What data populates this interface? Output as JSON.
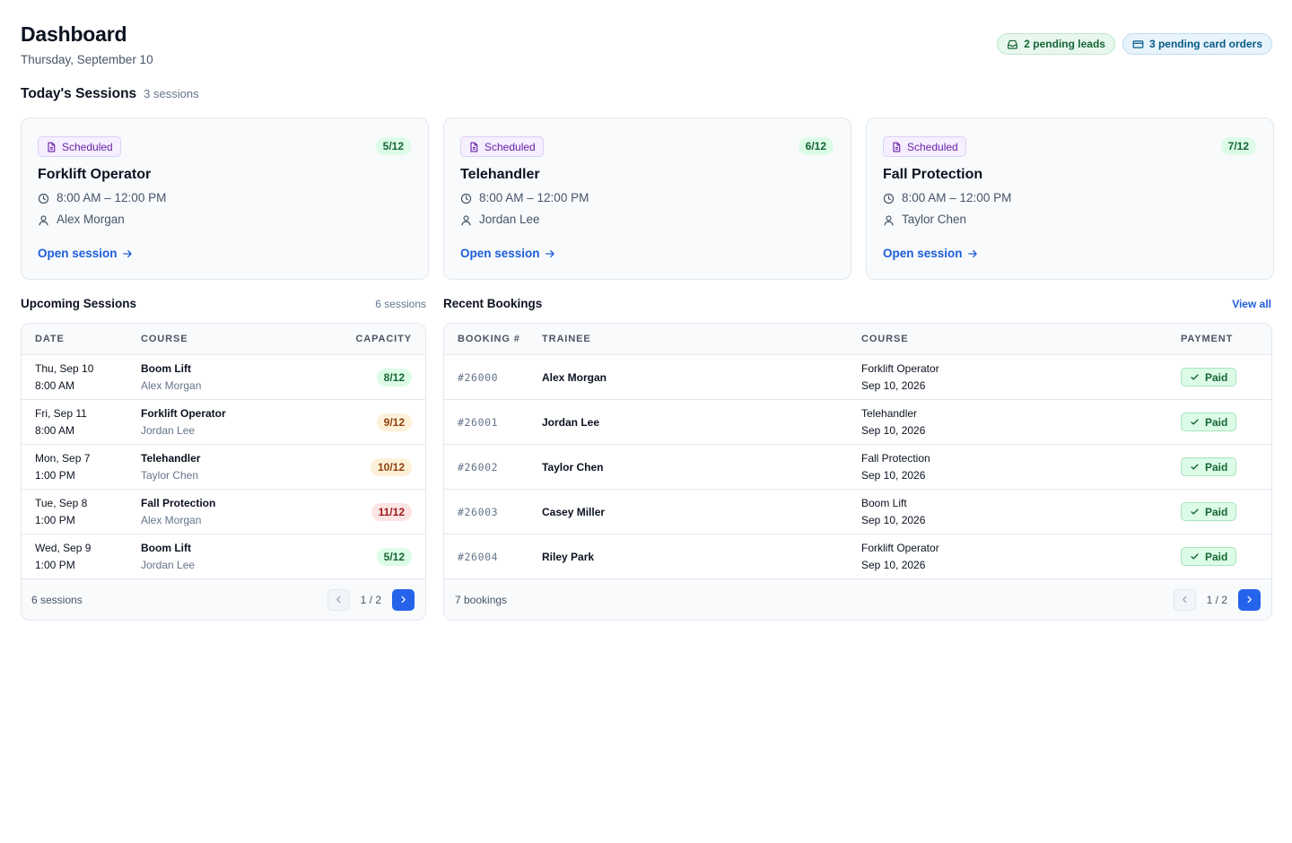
{
  "header": {
    "title": "Dashboard",
    "date": "Thursday, September 10",
    "badges": [
      {
        "label": "2 pending leads",
        "icon": "inbox-icon",
        "color": "#166534"
      },
      {
        "label": "3 pending card orders",
        "icon": "credit-card-icon",
        "color": "#075985"
      }
    ]
  },
  "todays_sessions": {
    "title": "Today's Sessions",
    "count": "3 sessions",
    "cards": [
      {
        "status": "Scheduled",
        "capacity": "5/12",
        "course": "Forklift Operator",
        "time": "8:00 AM – 12:00 PM",
        "instructor": "Alex Morgan",
        "link": "Open session"
      },
      {
        "status": "Scheduled",
        "capacity": "6/12",
        "course": "Telehandler",
        "time": "8:00 AM – 12:00 PM",
        "instructor": "Jordan Lee",
        "link": "Open session"
      },
      {
        "status": "Scheduled",
        "capacity": "7/12",
        "course": "Fall Protection",
        "time": "8:00 AM – 12:00 PM",
        "instructor": "Taylor Chen",
        "link": "Open session"
      }
    ]
  },
  "upcoming": {
    "title": "Upcoming Sessions",
    "count": "6 sessions",
    "columns": [
      "DATE",
      "COURSE",
      "CAPACITY"
    ],
    "rows": [
      {
        "date": "Thu, Sep 10",
        "time": "8:00 AM",
        "course": "Boom Lift",
        "instructor": "Alex Morgan",
        "capacity": "8/12",
        "level": "green"
      },
      {
        "date": "Fri, Sep 11",
        "time": "8:00 AM",
        "course": "Forklift Operator",
        "instructor": "Jordan Lee",
        "capacity": "9/12",
        "level": "amber"
      },
      {
        "date": "Mon, Sep 7",
        "time": "1:00 PM",
        "course": "Telehandler",
        "instructor": "Taylor Chen",
        "capacity": "10/12",
        "level": "amber"
      },
      {
        "date": "Tue, Sep 8",
        "time": "1:00 PM",
        "course": "Fall Protection",
        "instructor": "Alex Morgan",
        "capacity": "11/12",
        "level": "red"
      },
      {
        "date": "Wed, Sep 9",
        "time": "1:00 PM",
        "course": "Boom Lift",
        "instructor": "Jordan Lee",
        "capacity": "5/12",
        "level": "green"
      }
    ],
    "footer": "6 sessions",
    "page": "1 / 2"
  },
  "bookings": {
    "title": "Recent Bookings",
    "view_all": "View all",
    "columns": [
      "BOOKING #",
      "TRAINEE",
      "COURSE",
      "PAYMENT"
    ],
    "rows": [
      {
        "id": "#26000",
        "trainee": "Alex Morgan",
        "course": "Forklift Operator",
        "date": "Sep 10, 2026",
        "payment": "Paid"
      },
      {
        "id": "#26001",
        "trainee": "Jordan Lee",
        "course": "Telehandler",
        "date": "Sep 10, 2026",
        "payment": "Paid"
      },
      {
        "id": "#26002",
        "trainee": "Taylor Chen",
        "course": "Fall Protection",
        "date": "Sep 10, 2026",
        "payment": "Paid"
      },
      {
        "id": "#26003",
        "trainee": "Casey Miller",
        "course": "Boom Lift",
        "date": "Sep 10, 2026",
        "payment": "Paid"
      },
      {
        "id": "#26004",
        "trainee": "Riley Park",
        "course": "Forklift Operator",
        "date": "Sep 10, 2026",
        "payment": "Paid"
      }
    ],
    "footer": "7 bookings",
    "page": "1 / 2"
  },
  "colors": {
    "accent": "#2563eb",
    "link": "#1d5ed8",
    "scheduled": "#6b21a8"
  }
}
